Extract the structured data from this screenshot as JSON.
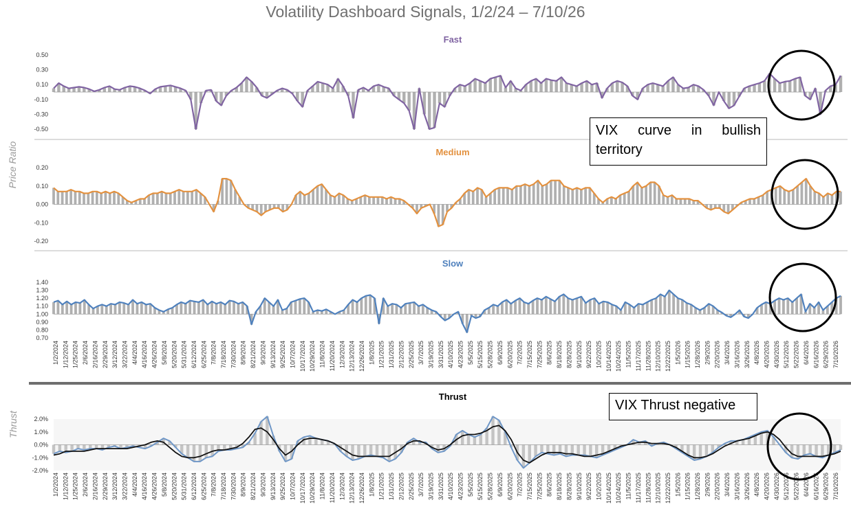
{
  "title": "Volatility Dashboard Signals, 1/2/24 – 7/10/26",
  "y_axis_labels": {
    "price_ratio": "Price Ratio",
    "thrust": "Thrust"
  },
  "annotations": {
    "curve": "VIX curve in bullish territory",
    "thrust": "VIX Thrust negative"
  },
  "colors": {
    "fast": "#8064a2",
    "medium": "#e3913f",
    "slow": "#4f81bd",
    "thrust_blue": "#6f97c7",
    "thrust_black": "#111111",
    "grey": "#9a9a9a"
  },
  "x_tick_labels": [
    "1/2/2024",
    "1/12/2024",
    "1/25/2024",
    "2/6/2024",
    "2/16/2024",
    "2/29/2024",
    "3/12/2024",
    "3/22/2024",
    "4/4/2024",
    "4/16/2024",
    "4/26/2024",
    "5/8/2024",
    "5/20/2024",
    "5/31/2024",
    "6/12/2024",
    "6/25/2024",
    "7/8/2024",
    "7/18/2024",
    "7/30/2024",
    "8/9/2024",
    "8/21/2024",
    "9/3/2024",
    "9/13/2024",
    "9/25/2024",
    "10/7/2024",
    "10/17/2024",
    "10/29/2024",
    "11/8/2024",
    "11/20/2024",
    "12/3/2024",
    "12/13/2024",
    "12/26/2024",
    "1/8/2025",
    "1/21/2025",
    "1/31/2025",
    "2/12/2025",
    "2/25/2025",
    "3/7/2025",
    "3/19/2025",
    "3/31/2025",
    "4/10/2025",
    "4/23/2025",
    "5/5/2025",
    "5/15/2025",
    "5/28/2025",
    "6/9/2025",
    "6/20/2025",
    "7/2/2025",
    "7/15/2025",
    "7/25/2025",
    "8/6/2025",
    "8/18/2025",
    "8/28/2025",
    "9/10/2025",
    "9/22/2025",
    "10/2/2025",
    "10/14/2025",
    "10/24/2025",
    "11/5/2025",
    "11/17/2025",
    "11/28/2025",
    "12/10/2025",
    "12/22/2025",
    "1/5/2026",
    "1/15/2026",
    "1/28/2026",
    "2/9/2026",
    "2/20/2026",
    "3/4/2026",
    "3/16/2026",
    "3/26/2026",
    "4/8/2026",
    "4/20/2026",
    "4/30/2026",
    "5/12/2026",
    "5/22/2026",
    "6/4/2026",
    "6/16/2026",
    "6/29/2026",
    "7/10/2026"
  ],
  "chart_data": [
    {
      "type": "area",
      "title": "Fast",
      "ylabel": "Price Ratio",
      "ylim": [
        -0.5,
        0.5
      ],
      "yticks": [
        "0.50",
        "0.30",
        "0.10",
        "-0.10",
        "-0.30",
        "-0.50"
      ],
      "ytick_values": [
        0.5,
        0.3,
        0.1,
        -0.1,
        -0.3,
        -0.5
      ],
      "baseline": 0,
      "series": [
        {
          "values": [
            0.05,
            0.12,
            0.08,
            0.05,
            0.06,
            0.07,
            0.06,
            0.04,
            0.01,
            0.03,
            0.06,
            0.08,
            0.04,
            0.03,
            0.06,
            0.08,
            0.07,
            0.05,
            0.02,
            -0.02,
            0.04,
            0.07,
            0.08,
            0.09,
            0.07,
            0.05,
            0.02,
            -0.1,
            -0.5,
            -0.15,
            0.02,
            0.03,
            -0.12,
            -0.18,
            -0.05,
            0.02,
            0.06,
            0.12,
            0.2,
            0.14,
            0.06,
            -0.05,
            -0.08,
            -0.03,
            0.02,
            0.05,
            0.03,
            -0.02,
            -0.12,
            -0.2,
            0.02,
            0.08,
            0.14,
            0.12,
            0.1,
            0.05,
            0.18,
            0.08,
            -0.05,
            -0.35,
            0.03,
            0.06,
            0.02,
            0.08,
            0.1,
            0.07,
            0.05,
            -0.05,
            -0.1,
            -0.15,
            -0.25,
            -0.5,
            0.05,
            -0.3,
            -0.5,
            -0.48,
            -0.15,
            -0.2,
            -0.05,
            0.05,
            0.1,
            0.08,
            0.12,
            0.18,
            0.15,
            0.12,
            0.18,
            0.2,
            0.22,
            0.06,
            0.15,
            0.05,
            0.02,
            0.1,
            0.15,
            0.18,
            0.12,
            0.18,
            0.16,
            0.15,
            0.2,
            0.12,
            0.1,
            0.08,
            0.12,
            0.15,
            0.1,
            0.12,
            -0.08,
            0.05,
            0.12,
            0.15,
            0.13,
            0.08,
            -0.05,
            -0.1,
            0.05,
            0.1,
            0.12,
            0.1,
            0.08,
            0.15,
            0.2,
            0.1,
            0.05,
            0.06,
            0.1,
            0.08,
            0.03,
            -0.05,
            -0.18,
            0.0,
            -0.12,
            -0.22,
            -0.18,
            -0.06,
            0.05,
            0.08,
            0.1,
            0.12,
            0.15,
            0.25,
            0.18,
            0.12,
            0.14,
            0.15,
            0.18,
            0.2,
            -0.05,
            -0.1,
            0.05,
            -0.3,
            0.02,
            0.08,
            0.1,
            0.22
          ]
        }
      ]
    },
    {
      "type": "area",
      "title": "Medium",
      "ylabel": "Price Ratio",
      "ylim": [
        -0.2,
        0.2
      ],
      "yticks": [
        "0.20",
        "0.10",
        "0.00",
        "-0.10",
        "-0.20"
      ],
      "ytick_values": [
        0.2,
        0.1,
        0.0,
        -0.1,
        -0.2
      ],
      "baseline": 0,
      "series": [
        {
          "values": [
            0.09,
            0.07,
            0.07,
            0.07,
            0.08,
            0.07,
            0.07,
            0.06,
            0.06,
            0.07,
            0.07,
            0.06,
            0.07,
            0.06,
            0.07,
            0.06,
            0.04,
            0.02,
            0.01,
            0.02,
            0.03,
            0.03,
            0.05,
            0.06,
            0.06,
            0.07,
            0.06,
            0.06,
            0.07,
            0.08,
            0.07,
            0.07,
            0.07,
            0.08,
            0.06,
            0.04,
            0.0,
            -0.04,
            0.02,
            0.14,
            0.14,
            0.13,
            0.08,
            0.04,
            0.0,
            -0.02,
            -0.03,
            -0.04,
            -0.06,
            -0.04,
            -0.03,
            -0.02,
            -0.02,
            -0.04,
            -0.03,
            0.0,
            0.05,
            0.07,
            0.05,
            0.06,
            0.08,
            0.1,
            0.11,
            0.08,
            0.05,
            0.04,
            0.06,
            0.05,
            0.03,
            0.02,
            0.03,
            0.04,
            0.05,
            0.04,
            0.04,
            0.04,
            0.04,
            0.03,
            0.04,
            0.03,
            0.03,
            0.02,
            0.0,
            -0.02,
            -0.05,
            -0.02,
            -0.01,
            0.0,
            -0.05,
            -0.12,
            -0.11,
            -0.04,
            -0.02,
            0.01,
            0.03,
            0.06,
            0.08,
            0.07,
            0.09,
            0.08,
            0.04,
            0.06,
            0.08,
            0.09,
            0.09,
            0.09,
            0.08,
            0.1,
            0.1,
            0.11,
            0.1,
            0.11,
            0.13,
            0.1,
            0.11,
            0.13,
            0.13,
            0.13,
            0.1,
            0.09,
            0.08,
            0.09,
            0.08,
            0.09,
            0.09,
            0.06,
            0.03,
            0.01,
            0.03,
            0.04,
            0.03,
            0.05,
            0.06,
            0.07,
            0.1,
            0.12,
            0.09,
            0.1,
            0.12,
            0.12,
            0.1,
            0.05,
            0.04,
            0.05,
            0.03,
            0.03,
            0.03,
            0.03,
            0.02,
            0.02,
            0.0,
            -0.02,
            -0.03,
            -0.02,
            -0.02,
            -0.04,
            -0.05,
            -0.03,
            -0.01,
            0.01,
            0.02,
            0.03,
            0.03,
            0.04,
            0.05,
            0.07,
            0.08,
            0.09,
            0.1,
            0.08,
            0.07,
            0.08,
            0.1,
            0.12,
            0.14,
            0.1,
            0.07,
            0.06,
            0.04,
            0.06,
            0.05,
            0.07,
            0.07
          ]
        }
      ]
    },
    {
      "type": "area",
      "title": "Slow",
      "ylabel": "Price Ratio",
      "ylim": [
        0.7,
        1.4
      ],
      "yticks": [
        "1.40",
        "1.30",
        "1.20",
        "1.10",
        "1.00",
        "0.90",
        "0.80",
        "0.70"
      ],
      "ytick_values": [
        1.4,
        1.3,
        1.2,
        1.1,
        1.0,
        0.9,
        0.8,
        0.7
      ],
      "baseline": 1.0,
      "series": [
        {
          "values": [
            1.15,
            1.17,
            1.12,
            1.16,
            1.12,
            1.15,
            1.14,
            1.18,
            1.12,
            1.07,
            1.1,
            1.12,
            1.1,
            1.13,
            1.12,
            1.15,
            1.14,
            1.12,
            1.18,
            1.13,
            1.15,
            1.12,
            1.13,
            1.08,
            1.05,
            1.03,
            1.06,
            1.08,
            1.12,
            1.15,
            1.13,
            1.17,
            1.16,
            1.15,
            1.18,
            1.12,
            1.16,
            1.13,
            1.15,
            1.12,
            1.17,
            1.16,
            1.13,
            1.15,
            1.1,
            0.87,
            1.03,
            1.1,
            1.2,
            1.15,
            1.1,
            1.18,
            1.05,
            1.07,
            1.15,
            1.17,
            1.19,
            1.2,
            1.15,
            1.03,
            1.05,
            1.04,
            1.06,
            1.03,
            1.0,
            1.03,
            1.05,
            1.12,
            1.18,
            1.15,
            1.2,
            1.23,
            1.24,
            1.2,
            0.88,
            1.2,
            1.1,
            1.13,
            1.12,
            1.08,
            1.13,
            1.14,
            1.15,
            1.1,
            1.12,
            1.08,
            1.05,
            1.03,
            0.97,
            0.92,
            0.95,
            1.0,
            1.03,
            0.88,
            0.77,
            0.98,
            0.95,
            0.97,
            1.05,
            1.08,
            1.12,
            1.1,
            1.15,
            1.18,
            1.13,
            1.17,
            1.2,
            1.15,
            1.13,
            1.17,
            1.2,
            1.18,
            1.22,
            1.19,
            1.16,
            1.22,
            1.25,
            1.2,
            1.18,
            1.2,
            1.22,
            1.14,
            1.18,
            1.2,
            1.13,
            1.16,
            1.15,
            1.12,
            1.1,
            1.05,
            1.15,
            1.12,
            1.08,
            1.13,
            1.12,
            1.15,
            1.18,
            1.2,
            1.25,
            1.22,
            1.3,
            1.25,
            1.2,
            1.18,
            1.14,
            1.12,
            1.08,
            1.05,
            1.08,
            1.13,
            1.1,
            1.05,
            1.02,
            0.98,
            0.96,
            1.0,
            1.05,
            0.97,
            0.95,
            1.0,
            1.08,
            1.12,
            1.15,
            1.13,
            1.17,
            1.2,
            1.18,
            1.2,
            1.15,
            1.2,
            1.25,
            1.03,
            1.13,
            1.08,
            1.15,
            1.05,
            1.1,
            1.15,
            1.2,
            1.23
          ]
        }
      ]
    },
    {
      "type": "line",
      "title": "Thrust",
      "ylabel": "Thrust",
      "ylim": [
        -2.0,
        2.0
      ],
      "yticks": [
        "2.0%",
        "1.0%",
        "0.0%",
        "-1.0%",
        "-2.0%"
      ],
      "ytick_values": [
        2.0,
        1.0,
        0.0,
        -1.0,
        -2.0
      ],
      "baseline": 0,
      "series": [
        {
          "color": "blue",
          "values": [
            -0.7,
            -0.5,
            -0.6,
            -0.5,
            -0.3,
            -0.4,
            -0.3,
            -0.3,
            -0.4,
            -0.2,
            -0.1,
            -0.3,
            -0.2,
            -0.1,
            -0.2,
            -0.3,
            -0.1,
            0.2,
            0.5,
            0.3,
            -0.2,
            -0.7,
            -1.0,
            -1.3,
            -1.3,
            -1.0,
            -0.9,
            -0.5,
            -0.4,
            -0.4,
            -0.3,
            -0.2,
            0.2,
            0.9,
            1.8,
            2.2,
            0.7,
            -0.5,
            -1.3,
            -1.1,
            0.3,
            0.6,
            0.7,
            0.5,
            0.4,
            0.3,
            0.1,
            -0.5,
            -0.9,
            -1.2,
            -1.1,
            -0.9,
            -0.8,
            -0.9,
            -1.0,
            -1.3,
            -1.1,
            -0.6,
            0.2,
            0.5,
            0.2,
            0.2,
            -0.3,
            -0.6,
            -0.5,
            -0.1,
            0.8,
            1.1,
            0.8,
            0.6,
            0.8,
            1.3,
            2.2,
            1.9,
            1.0,
            -0.2,
            -1.2,
            -1.8,
            -1.4,
            -0.9,
            -0.6,
            -0.7,
            -0.8,
            -0.7,
            -0.9,
            -0.8,
            -0.8,
            -0.8,
            -0.9,
            -1.0,
            -0.8,
            -0.6,
            -0.4,
            -0.2,
            0.0,
            0.4,
            0.2,
            0.3,
            -0.1,
            0.1,
            0.2,
            0.0,
            -0.3,
            -0.6,
            -0.9,
            -1.2,
            -1.1,
            -0.9,
            -0.6,
            -0.2,
            0.1,
            0.3,
            0.3,
            0.4,
            0.6,
            0.8,
            1.0,
            1.1,
            0.6,
            0.0,
            -0.6,
            -1.0,
            -1.1,
            -0.8,
            -0.7,
            -0.9,
            -1.0,
            -0.8,
            -0.6,
            -0.4
          ]
        },
        {
          "color": "black",
          "values": [
            -0.8,
            -0.7,
            -0.5,
            -0.5,
            -0.5,
            -0.5,
            -0.4,
            -0.3,
            -0.3,
            -0.3,
            -0.3,
            -0.3,
            -0.3,
            -0.2,
            -0.1,
            0.0,
            0.2,
            0.3,
            0.2,
            -0.2,
            -0.6,
            -0.9,
            -1.0,
            -1.0,
            -0.9,
            -0.7,
            -0.5,
            -0.4,
            -0.4,
            -0.3,
            -0.2,
            0.1,
            0.6,
            1.2,
            1.3,
            1.0,
            0.4,
            -0.3,
            -0.8,
            -0.5,
            0.0,
            0.4,
            0.5,
            0.5,
            0.4,
            0.3,
            0.1,
            -0.2,
            -0.5,
            -0.8,
            -0.9,
            -0.9,
            -0.9,
            -0.9,
            -0.9,
            -0.9,
            -0.6,
            -0.3,
            0.1,
            0.3,
            0.3,
            0.1,
            -0.2,
            -0.4,
            -0.3,
            0.0,
            0.4,
            0.7,
            0.8,
            0.8,
            0.9,
            1.1,
            1.4,
            1.5,
            1.1,
            0.4,
            -0.6,
            -1.2,
            -1.4,
            -1.1,
            -0.8,
            -0.6,
            -0.6,
            -0.6,
            -0.7,
            -0.7,
            -0.8,
            -0.9,
            -0.9,
            -0.8,
            -0.7,
            -0.5,
            -0.3,
            -0.1,
            0.0,
            0.1,
            0.2,
            0.2,
            0.1,
            0.1,
            0.1,
            0.0,
            -0.2,
            -0.5,
            -0.8,
            -1.0,
            -1.0,
            -0.9,
            -0.7,
            -0.4,
            -0.1,
            0.1,
            0.3,
            0.4,
            0.5,
            0.7,
            0.9,
            1.0,
            0.8,
            0.4,
            -0.2,
            -0.7,
            -0.9,
            -0.9,
            -0.9,
            -0.9,
            -0.9,
            -0.8,
            -0.7,
            -0.5
          ]
        }
      ]
    }
  ]
}
